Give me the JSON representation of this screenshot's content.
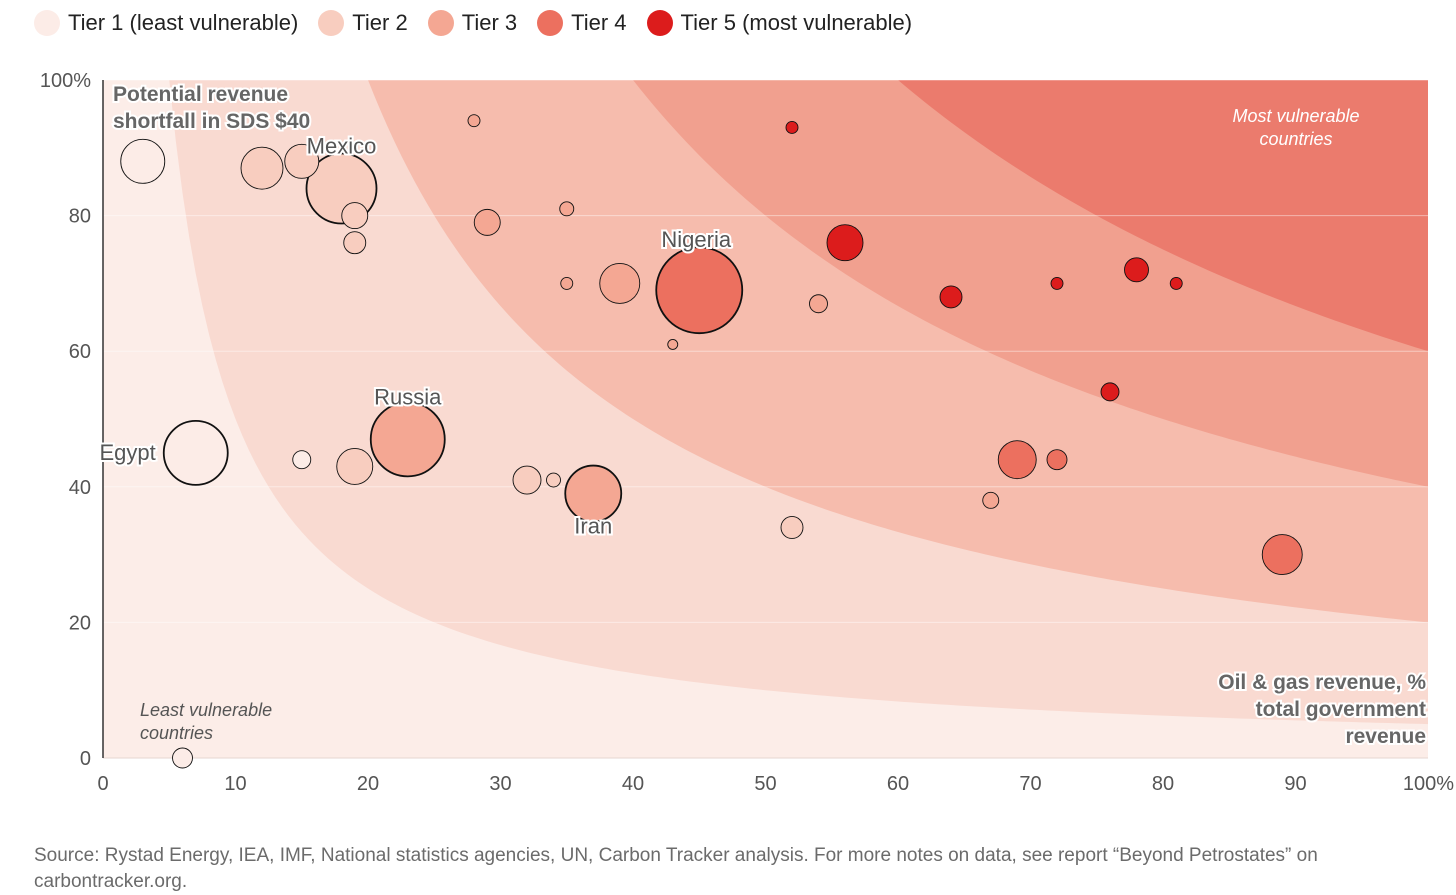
{
  "colors": {
    "tiers": [
      "#fcece7",
      "#f8cdbf",
      "#f4a793",
      "#ec705f",
      "#dc1c1c"
    ],
    "bands": [
      "#fcede8",
      "#f9dad1",
      "#f6bcad",
      "#f1a08f",
      "#eb7b6d"
    ],
    "stroke": "#111111"
  },
  "legend": [
    {
      "label": "Tier 1 (least vulnerable)"
    },
    {
      "label": "Tier 2"
    },
    {
      "label": "Tier 3"
    },
    {
      "label": "Tier 4"
    },
    {
      "label": "Tier 5 (most vulnerable)"
    }
  ],
  "annotations": {
    "title_line1": "Potential revenue",
    "title_line2": "shortfall in SDS $40",
    "most_vulnerable_line1": "Most vulnerable",
    "most_vulnerable_line2": "countries",
    "least_vulnerable_line1": "Least vulnerable",
    "least_vulnerable_line2": "countries",
    "xaxis_line1": "Oil & gas revenue, %",
    "xaxis_line2": "total government",
    "xaxis_line3": "revenue"
  },
  "source": "Source: Rystad Energy, IEA, IMF, National statistics agencies, UN, Carbon Tracker analysis. For more notes on data, see report “Beyond Petrostates” on carbontracker.org.",
  "chart_data": {
    "type": "scatter",
    "xlim": [
      0,
      100
    ],
    "ylim": [
      0,
      100
    ],
    "x_ticks": [
      "0",
      "10",
      "20",
      "30",
      "40",
      "50",
      "60",
      "70",
      "80",
      "90",
      "100%"
    ],
    "y_ticks": [
      "0",
      "20",
      "40",
      "60",
      "80",
      "100%"
    ],
    "x_tick_values": [
      0,
      10,
      20,
      30,
      40,
      50,
      60,
      70,
      80,
      90,
      100
    ],
    "y_tick_values": [
      0,
      20,
      40,
      60,
      80,
      100
    ],
    "grid": "horizontal",
    "legend_position": "top-left",
    "tier_band_products": [
      500,
      2000,
      4000,
      6000
    ],
    "points": [
      {
        "x": 3,
        "y": 88,
        "size": 22,
        "tier": 1,
        "label": ""
      },
      {
        "x": 7,
        "y": 45,
        "size": 32,
        "tier": 1,
        "label": "Egypt"
      },
      {
        "x": 6,
        "y": 0,
        "size": 10,
        "tier": 1,
        "label": ""
      },
      {
        "x": 12,
        "y": 87,
        "size": 21,
        "tier": 2,
        "label": ""
      },
      {
        "x": 15,
        "y": 88,
        "size": 17,
        "tier": 2,
        "label": ""
      },
      {
        "x": 18,
        "y": 84,
        "size": 35,
        "tier": 2,
        "label": "Mexico"
      },
      {
        "x": 19,
        "y": 80,
        "size": 13,
        "tier": 2,
        "label": ""
      },
      {
        "x": 19,
        "y": 76,
        "size": 11,
        "tier": 2,
        "label": ""
      },
      {
        "x": 15,
        "y": 44,
        "size": 9,
        "tier": 1,
        "label": ""
      },
      {
        "x": 19,
        "y": 43,
        "size": 18,
        "tier": 2,
        "label": ""
      },
      {
        "x": 23,
        "y": 47,
        "size": 37,
        "tier": 3,
        "label": "Russia"
      },
      {
        "x": 28,
        "y": 94,
        "size": 6,
        "tier": 3,
        "label": ""
      },
      {
        "x": 29,
        "y": 79,
        "size": 13,
        "tier": 3,
        "label": ""
      },
      {
        "x": 32,
        "y": 41,
        "size": 14,
        "tier": 2,
        "label": ""
      },
      {
        "x": 34,
        "y": 41,
        "size": 7,
        "tier": 2,
        "label": ""
      },
      {
        "x": 35,
        "y": 81,
        "size": 7,
        "tier": 3,
        "label": ""
      },
      {
        "x": 35,
        "y": 70,
        "size": 6,
        "tier": 3,
        "label": ""
      },
      {
        "x": 37,
        "y": 39,
        "size": 28,
        "tier": 3,
        "label": "Iran"
      },
      {
        "x": 39,
        "y": 70,
        "size": 20,
        "tier": 3,
        "label": ""
      },
      {
        "x": 43,
        "y": 61,
        "size": 5,
        "tier": 3,
        "label": ""
      },
      {
        "x": 45,
        "y": 69,
        "size": 43,
        "tier": 4,
        "label": "Nigeria"
      },
      {
        "x": 52,
        "y": 93,
        "size": 6,
        "tier": 5,
        "label": ""
      },
      {
        "x": 52,
        "y": 34,
        "size": 11,
        "tier": 2,
        "label": ""
      },
      {
        "x": 54,
        "y": 67,
        "size": 9,
        "tier": 3,
        "label": ""
      },
      {
        "x": 56,
        "y": 76,
        "size": 18,
        "tier": 5,
        "label": ""
      },
      {
        "x": 64,
        "y": 68,
        "size": 11,
        "tier": 5,
        "label": ""
      },
      {
        "x": 67,
        "y": 38,
        "size": 8,
        "tier": 3,
        "label": ""
      },
      {
        "x": 69,
        "y": 44,
        "size": 19,
        "tier": 4,
        "label": ""
      },
      {
        "x": 72,
        "y": 70,
        "size": 6,
        "tier": 5,
        "label": ""
      },
      {
        "x": 72,
        "y": 44,
        "size": 10,
        "tier": 4,
        "label": ""
      },
      {
        "x": 76,
        "y": 54,
        "size": 9,
        "tier": 5,
        "label": ""
      },
      {
        "x": 78,
        "y": 72,
        "size": 12,
        "tier": 5,
        "label": ""
      },
      {
        "x": 81,
        "y": 70,
        "size": 6,
        "tier": 5,
        "label": ""
      },
      {
        "x": 89,
        "y": 30,
        "size": 20,
        "tier": 4,
        "label": ""
      }
    ]
  }
}
